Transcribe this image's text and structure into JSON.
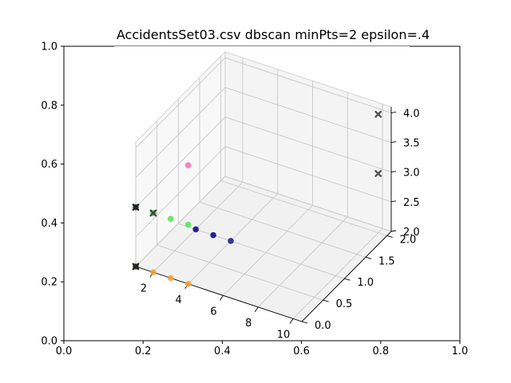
{
  "chart_data": {
    "type": "scatter",
    "title": "AccidentsSet03.csv dbscan minPts=2 epsilon=.4",
    "outer_axes": {
      "x_ticks": [
        "0.0",
        "0.2",
        "0.4",
        "0.6",
        "0.8",
        "1.0"
      ],
      "y_ticks": [
        "0.0",
        "0.2",
        "0.4",
        "0.6",
        "0.8",
        "1.0"
      ],
      "xlim": [
        0,
        1
      ],
      "ylim": [
        0,
        1
      ]
    },
    "axes3d": {
      "x_ticks": [
        "2",
        "4",
        "6",
        "8",
        "10"
      ],
      "y_ticks": [
        "0.0",
        "0.5",
        "1.0",
        "1.5",
        "2.0"
      ],
      "z_ticks": [
        "2.0",
        "2.5",
        "3.0",
        "3.5",
        "4.0"
      ],
      "xlim": [
        1,
        10.5
      ],
      "ylim": [
        0,
        2.1
      ],
      "zlim": [
        2,
        4.1
      ],
      "grid": true
    },
    "points": [
      {
        "x": 1,
        "y": 0,
        "z": 2,
        "color": "#2b1a00",
        "marker": "o"
      },
      {
        "x": 2,
        "y": 0,
        "z": 2,
        "color": "#f5a030",
        "marker": "o"
      },
      {
        "x": 3,
        "y": 0,
        "z": 2,
        "color": "#f5a030",
        "marker": "o"
      },
      {
        "x": 4,
        "y": 0,
        "z": 2,
        "color": "#f5a030",
        "marker": "o"
      },
      {
        "x": 1,
        "y": 0,
        "z": 2,
        "color": "#222222",
        "marker": "X"
      },
      {
        "x": 2,
        "y": 1,
        "z": 2,
        "color": "#00008b",
        "marker": "o"
      },
      {
        "x": 3,
        "y": 1,
        "z": 2,
        "color": "#00008b",
        "marker": "o"
      },
      {
        "x": 4,
        "y": 1,
        "z": 2,
        "color": "#1a1a8c",
        "marker": "o"
      },
      {
        "x": 2,
        "y": 0,
        "z": 3,
        "color": "#19e619",
        "marker": "o"
      },
      {
        "x": 3,
        "y": 0,
        "z": 3,
        "color": "#4de64d",
        "marker": "o"
      },
      {
        "x": 4,
        "y": 0,
        "z": 3,
        "color": "#4de64d",
        "marker": "o"
      },
      {
        "x": 1,
        "y": 0,
        "z": 3,
        "color": "#003300",
        "marker": "o"
      },
      {
        "x": 1,
        "y": 0,
        "z": 3,
        "color": "#222222",
        "marker": "X"
      },
      {
        "x": 2,
        "y": 0,
        "z": 3,
        "color": "#444444",
        "marker": "X"
      },
      {
        "x": 4,
        "y": 0,
        "z": 4,
        "color": "#ff69b4",
        "marker": "o"
      },
      {
        "x": 10,
        "y": 2,
        "z": 4,
        "color": "#555555",
        "marker": "X"
      },
      {
        "x": 10,
        "y": 2,
        "z": 3,
        "color": "#555555",
        "marker": "X"
      }
    ]
  }
}
